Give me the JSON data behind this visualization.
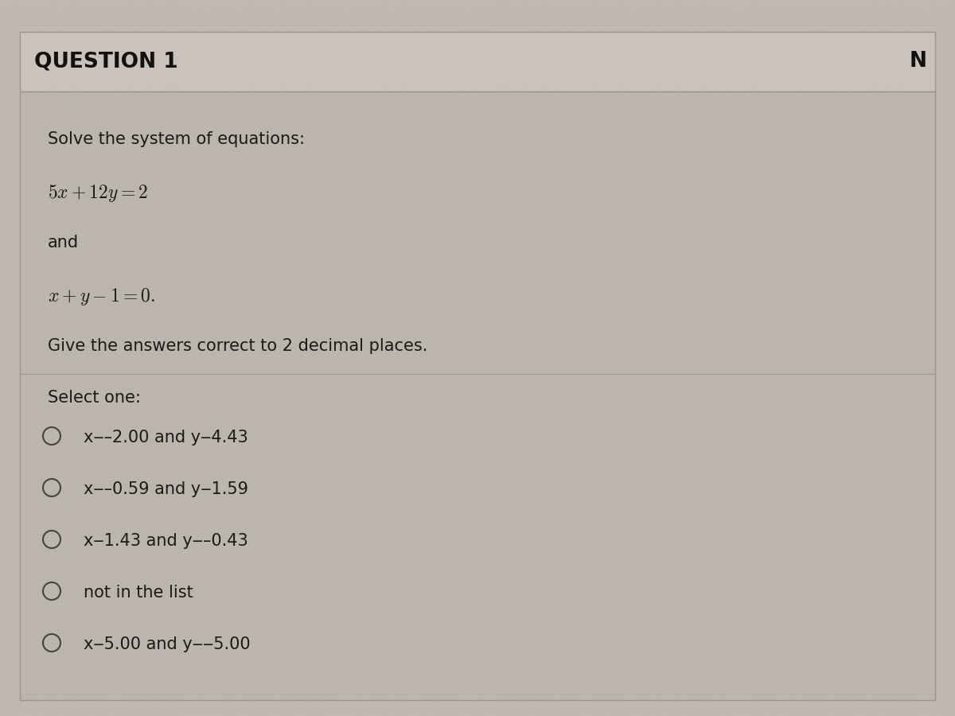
{
  "title": "QUESTION 1",
  "corner_label": "N",
  "question_text": "Solve the system of equations:",
  "connector": "and",
  "instruction": "Give the answers correct to 2 decimal places.",
  "select_label": "Select one:",
  "option_texts": [
    "x=-2.00 and y=4.43",
    "x=-0.59 and y=1.59",
    "x=1.43 and y=-0.43",
    "not in the list",
    "x=5.00 and y=-5.00"
  ],
  "option_display": [
    "x‒–2.00 and y‒4.43",
    "x‒–0.59 and y‒1.59",
    "x‒1.43 and y‒–0.43",
    "not in the list",
    "x‒5.00 and y‒‒5.00"
  ],
  "bg_outer": "#c2b9b0",
  "bg_header": "#c4bdb5",
  "bg_content": "#bdb5ac",
  "separator_color": "#9a9a9a",
  "text_color": "#1a1a1a",
  "title_color": "#111111",
  "title_fontsize": 19,
  "body_fontsize": 15,
  "eq_fontsize": 17,
  "option_fontsize": 15,
  "select_fontsize": 15
}
